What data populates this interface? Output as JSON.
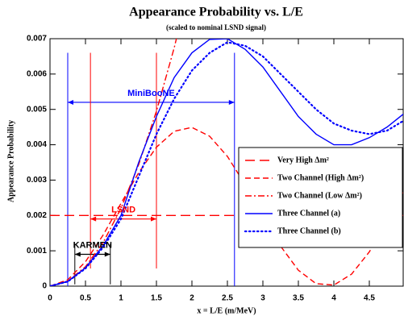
{
  "chart_data": {
    "type": "line",
    "title": "Appearance Probability vs. L/E",
    "subtitle": "(scaled to nominal LSND signal)",
    "x_label": "x = L/E (m/MeV)",
    "y_label": "Appearance Probability",
    "xlim": [
      0,
      5
    ],
    "ylim": [
      0,
      0.007
    ],
    "xticks": [
      0,
      0.5,
      1,
      1.5,
      2,
      2.5,
      3,
      3.5,
      4,
      4.5
    ],
    "yticks": [
      0,
      0.001,
      0.002,
      0.003,
      0.004,
      0.005,
      0.006,
      0.007
    ],
    "legend": "right",
    "x": [
      0,
      0.25,
      0.5,
      0.75,
      1,
      1.25,
      1.5,
      1.75,
      2,
      2.25,
      2.5,
      2.75,
      3,
      3.25,
      3.5,
      3.75,
      4,
      4.25,
      4.5,
      4.75,
      5
    ],
    "series": [
      {
        "name": "Very High Δm²",
        "color": "#ff0000",
        "style": "longdash",
        "values": [
          0.002,
          0.002,
          0.002,
          0.002,
          0.002,
          0.002,
          0.002,
          0.002,
          0.002,
          0.002,
          0.002,
          0.002,
          0.002,
          0.002,
          0.002,
          0.002,
          0.002,
          0.002,
          0.002,
          0.002,
          0.002
        ]
      },
      {
        "name": "Two Channel  (High Δm²)",
        "color": "#ff0000",
        "style": "dash",
        "values": [
          0,
          0.00018,
          0.00069,
          0.00145,
          0.00234,
          0.00321,
          0.00393,
          0.00438,
          0.00449,
          0.00424,
          0.00367,
          0.00287,
          0.00198,
          0.00113,
          0.00045,
          7e-05,
          3e-05,
          0.00034,
          0.00097,
          0.00182,
          0.00271
        ]
      },
      {
        "name": "Two Channel (Low Δm²)",
        "color": "#ff0000",
        "style": "dashdot",
        "values": [
          0,
          0.00014,
          0.00055,
          0.00124,
          0.0022,
          0.00344,
          0.00495,
          0.00674,
          0.0088,
          null,
          null,
          null,
          null,
          null,
          null,
          null,
          null,
          null,
          null,
          null,
          null
        ]
      },
      {
        "name": "Three Channel (a)",
        "color": "#0000ff",
        "style": "solid",
        "values": [
          0,
          0.00013,
          0.00052,
          0.00115,
          0.002,
          0.0035,
          0.0048,
          0.0059,
          0.0066,
          0.00698,
          0.007,
          0.0067,
          0.0062,
          0.0055,
          0.0048,
          0.0043,
          0.004,
          0.004,
          0.0042,
          0.0045,
          0.0049
        ]
      },
      {
        "name": "Three Channel (b)",
        "color": "#0000ff",
        "style": "dot",
        "values": [
          0,
          0.00013,
          0.0005,
          0.0011,
          0.0019,
          0.0031,
          0.0043,
          0.0053,
          0.0061,
          0.0066,
          0.0069,
          0.0068,
          0.0065,
          0.006,
          0.0055,
          0.005,
          0.0046,
          0.0044,
          0.0043,
          0.0044,
          0.0047
        ]
      }
    ],
    "annotations": [
      {
        "text": "MiniBooNE",
        "color": "#0000ff",
        "range": [
          0.25,
          2.6
        ],
        "arrow_y": 0.0052,
        "span": [
          0,
          0.0066
        ]
      },
      {
        "text": "LSND",
        "color": "#ff0000",
        "range": [
          0.57,
          1.5
        ],
        "arrow_y": 0.0019,
        "span": [
          0.0005,
          0.0066
        ]
      },
      {
        "text": "KARMEN",
        "color": "#000000",
        "range": [
          0.35,
          0.85
        ],
        "arrow_y": 0.0009,
        "span": [
          5e-05,
          0.0012
        ]
      }
    ]
  }
}
